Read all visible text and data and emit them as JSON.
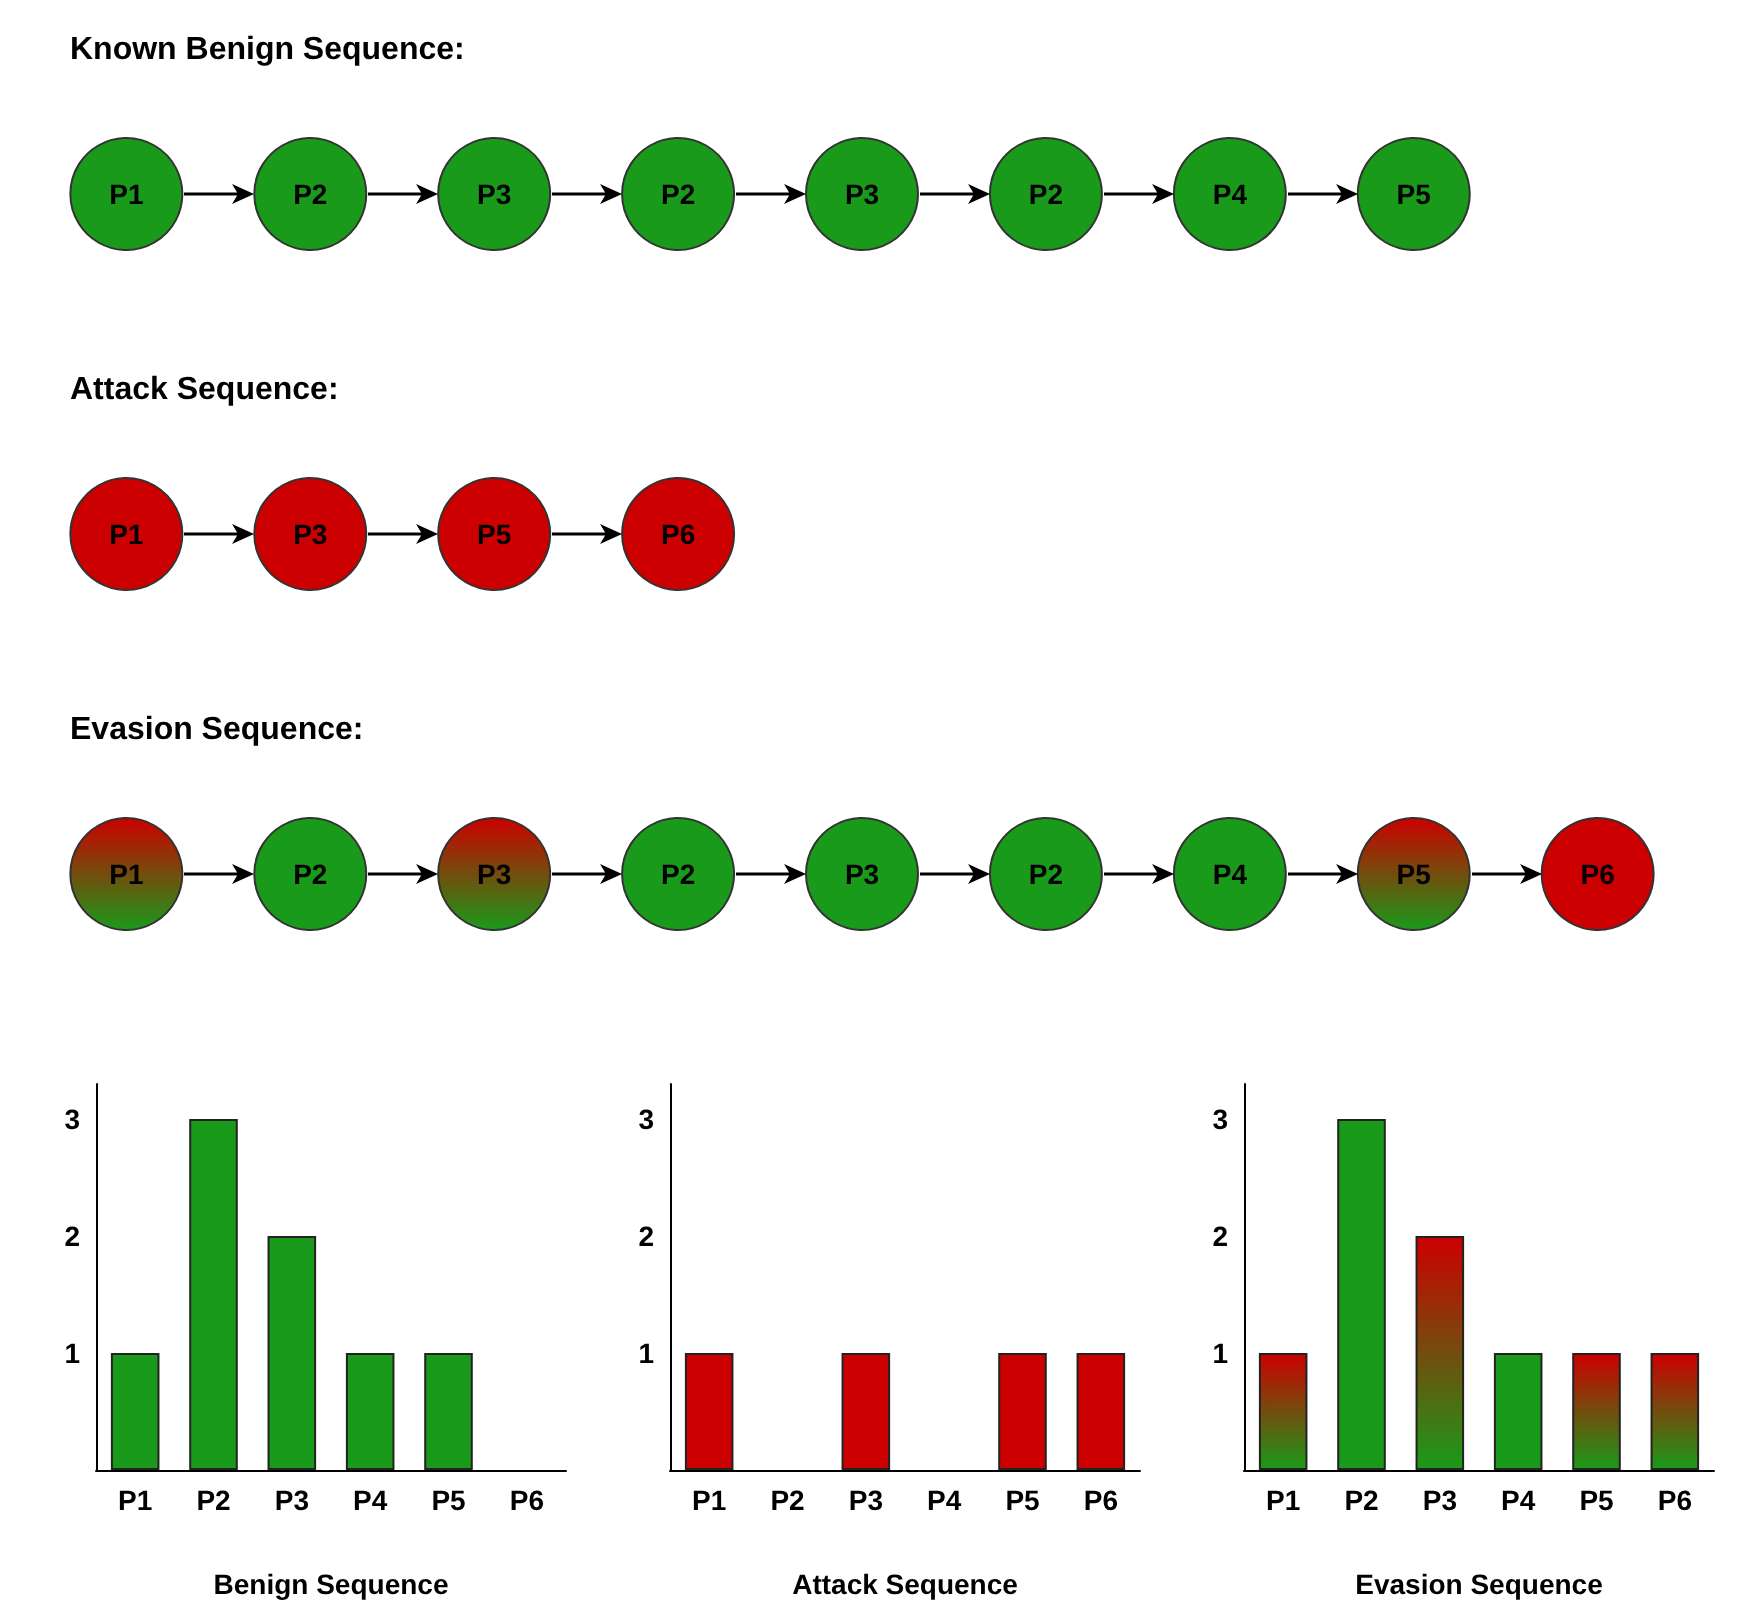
{
  "chart_data": [
    {
      "type": "other",
      "title": "Known Benign Sequence:",
      "categories": [
        "P1",
        "P2",
        "P3",
        "P2",
        "P3",
        "P2",
        "P4",
        "P5"
      ],
      "colors": [
        "#1a9a1a",
        "#1a9a1a",
        "#1a9a1a",
        "#1a9a1a",
        "#1a9a1a",
        "#1a9a1a",
        "#1a9a1a",
        "#1a9a1a"
      ]
    },
    {
      "type": "other",
      "title": "Attack Sequence:",
      "categories": [
        "P1",
        "P3",
        "P5",
        "P6"
      ],
      "colors": [
        "#cc0000",
        "#cc0000",
        "#cc0000",
        "#cc0000"
      ]
    },
    {
      "type": "other",
      "title": "Evasion Sequence:",
      "categories": [
        "P1",
        "P2",
        "P3",
        "P2",
        "P3",
        "P2",
        "P4",
        "P5",
        "P6"
      ],
      "colors": [
        [
          "#cc0000",
          "#1a9a1a"
        ],
        "#1a9a1a",
        [
          "#cc0000",
          "#1a9a1a"
        ],
        "#1a9a1a",
        "#1a9a1a",
        "#1a9a1a",
        "#1a9a1a",
        [
          "#cc0000",
          "#1a9a1a"
        ],
        "#cc0000"
      ]
    },
    {
      "type": "bar",
      "xlabel": "Benign Sequence",
      "categories": [
        "P1",
        "P2",
        "P3",
        "P4",
        "P5",
        "P6"
      ],
      "values": [
        1,
        3,
        2,
        1,
        1,
        null
      ],
      "colors": [
        "#1a9a1a",
        "#1a9a1a",
        "#1a9a1a",
        "#1a9a1a",
        "#1a9a1a",
        "#1a9a1a"
      ],
      "ylim": [
        0,
        3.3
      ],
      "yticks": [
        1,
        2,
        3
      ],
      "grid": false
    },
    {
      "type": "bar",
      "xlabel": "Attack Sequence",
      "categories": [
        "P1",
        "P2",
        "P3",
        "P4",
        "P5",
        "P6"
      ],
      "values": [
        1,
        null,
        1,
        null,
        1,
        1
      ],
      "colors": [
        "#cc0000",
        "#cc0000",
        "#cc0000",
        "#cc0000",
        "#cc0000",
        "#cc0000"
      ],
      "ylim": [
        0,
        3.3
      ],
      "yticks": [
        1,
        2,
        3
      ],
      "grid": false
    },
    {
      "type": "bar",
      "xlabel": "Evasion Sequence",
      "categories": [
        "P1",
        "P2",
        "P3",
        "P4",
        "P5",
        "P6"
      ],
      "values": [
        1,
        3,
        2,
        1,
        1,
        1
      ],
      "colors": [
        [
          "#cc0000",
          "#1a9a1a"
        ],
        "#1a9a1a",
        [
          "#cc0000",
          "#1a9a1a"
        ],
        "#1a9a1a",
        [
          "#cc0000",
          "#1a9a1a"
        ],
        [
          "#cc0000",
          "#1a9a1a"
        ]
      ],
      "ylim": [
        0,
        3.3
      ],
      "yticks": [
        1,
        2,
        3
      ],
      "grid": false
    }
  ]
}
